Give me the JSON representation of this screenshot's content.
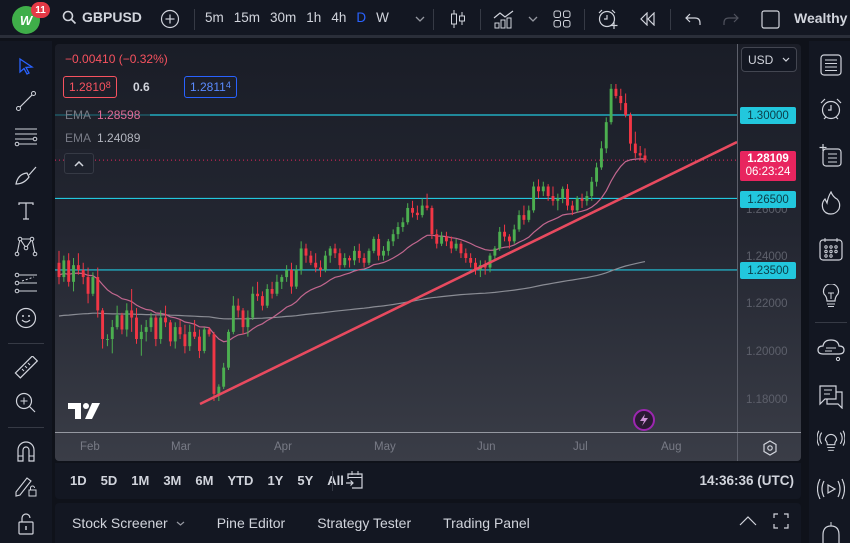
{
  "header": {
    "logo_text": "W",
    "notification_count": "11",
    "symbol": "GBPUSD",
    "intervals": [
      "5m",
      "15m",
      "30m",
      "1h",
      "4h",
      "D",
      "W"
    ],
    "active_interval": "D",
    "brand": "Wealthy"
  },
  "legend": {
    "change": "−0.00410 (−0.32%)",
    "sell_price_main": "1.2810",
    "sell_price_small": "8",
    "spread": "0.6",
    "buy_price_main": "1.2811",
    "buy_price_small": "4",
    "ema1_label": "EMA",
    "ema1_value": "1.28598",
    "ema2_label": "EMA",
    "ema2_value": "1.24089"
  },
  "price_axis": {
    "currency": "USD",
    "ticks": [
      "1.26000",
      "1.24000",
      "1.22000",
      "1.20000",
      "1.18000"
    ],
    "levels": [
      "1.30000",
      "1.26500",
      "1.23500"
    ],
    "current_price": "1.28109",
    "countdown": "06:23:24"
  },
  "time_axis": {
    "ticks": [
      "Feb",
      "Mar",
      "Apr",
      "May",
      "Jun",
      "Jul",
      "Aug"
    ]
  },
  "range_bar": {
    "ranges": [
      "1D",
      "5D",
      "1M",
      "3M",
      "6M",
      "YTD",
      "1Y",
      "5Y",
      "All"
    ],
    "clock": "14:36:36 (UTC)"
  },
  "bottom_panel": {
    "tabs": [
      "Stock Screener",
      "Pine Editor",
      "Strategy Tester",
      "Trading Panel"
    ]
  },
  "colors": {
    "up": "#4caf50",
    "down": "#f23645",
    "level_line": "#22c7dd",
    "trendline": "#e84a5f",
    "ema_fast": "#c2678f",
    "ema_slow": "#8a8c94",
    "current_price": "#e8255f",
    "accent": "#2962ff"
  },
  "chart_data": {
    "type": "candlestick",
    "title": "GBPUSD, D",
    "y_range": [
      1.17,
      1.315
    ],
    "x_months": [
      "Feb",
      "Mar",
      "Apr",
      "May",
      "Jun",
      "Jul",
      "Aug"
    ],
    "horizontal_levels": [
      1.3,
      1.265,
      1.235
    ],
    "trendline": {
      "from": [
        1.1775,
        "early Mar"
      ],
      "to": [
        1.2855,
        "late Jul (extended)"
      ]
    },
    "ema_fast_last": 1.28598,
    "ema_slow_last": 1.24089,
    "last_close": 1.28109,
    "candles": [
      [
        1.238,
        1.243,
        1.229,
        1.232
      ],
      [
        1.232,
        1.241,
        1.23,
        1.239
      ],
      [
        1.239,
        1.242,
        1.228,
        1.23
      ],
      [
        1.23,
        1.24,
        1.226,
        1.237
      ],
      [
        1.237,
        1.242,
        1.233,
        1.235
      ],
      [
        1.235,
        1.238,
        1.229,
        1.232
      ],
      [
        1.232,
        1.236,
        1.221,
        1.225
      ],
      [
        1.225,
        1.234,
        1.224,
        1.232
      ],
      [
        1.232,
        1.236,
        1.215,
        1.218
      ],
      [
        1.218,
        1.219,
        1.202,
        1.206
      ],
      [
        1.206,
        1.208,
        1.203,
        1.206
      ],
      [
        1.206,
        1.214,
        1.2,
        1.211
      ],
      [
        1.211,
        1.22,
        1.21,
        1.216
      ],
      [
        1.216,
        1.217,
        1.208,
        1.21
      ],
      [
        1.21,
        1.221,
        1.207,
        1.218
      ],
      [
        1.218,
        1.227,
        1.209,
        1.215
      ],
      [
        1.215,
        1.219,
        1.204,
        1.206
      ],
      [
        1.206,
        1.212,
        1.199,
        1.209
      ],
      [
        1.209,
        1.214,
        1.205,
        1.211
      ],
      [
        1.211,
        1.217,
        1.209,
        1.215
      ],
      [
        1.215,
        1.216,
        1.203,
        1.206
      ],
      [
        1.206,
        1.218,
        1.204,
        1.215
      ],
      [
        1.215,
        1.22,
        1.211,
        1.213
      ],
      [
        1.213,
        1.214,
        1.203,
        1.205
      ],
      [
        1.205,
        1.213,
        1.202,
        1.211
      ],
      [
        1.211,
        1.214,
        1.206,
        1.208
      ],
      [
        1.208,
        1.212,
        1.2,
        1.203
      ],
      [
        1.203,
        1.212,
        1.201,
        1.209
      ],
      [
        1.209,
        1.214,
        1.206,
        1.207
      ],
      [
        1.207,
        1.21,
        1.198,
        1.201
      ],
      [
        1.201,
        1.211,
        1.2,
        1.21
      ],
      [
        1.21,
        1.211,
        1.207,
        1.208
      ],
      [
        1.208,
        1.209,
        1.18,
        1.183
      ],
      [
        1.183,
        1.187,
        1.18,
        1.186
      ],
      [
        1.186,
        1.196,
        1.185,
        1.194
      ],
      [
        1.194,
        1.21,
        1.193,
        1.209
      ],
      [
        1.209,
        1.224,
        1.208,
        1.22
      ],
      [
        1.22,
        1.223,
        1.215,
        1.218
      ],
      [
        1.218,
        1.219,
        1.208,
        1.211
      ],
      [
        1.211,
        1.218,
        1.207,
        1.215
      ],
      [
        1.215,
        1.228,
        1.214,
        1.225
      ],
      [
        1.225,
        1.23,
        1.222,
        1.224
      ],
      [
        1.224,
        1.226,
        1.218,
        1.22
      ],
      [
        1.22,
        1.229,
        1.219,
        1.227
      ],
      [
        1.227,
        1.23,
        1.223,
        1.225
      ],
      [
        1.225,
        1.233,
        1.224,
        1.23
      ],
      [
        1.23,
        1.233,
        1.227,
        1.232
      ],
      [
        1.232,
        1.237,
        1.23,
        1.235
      ],
      [
        1.235,
        1.238,
        1.225,
        1.228
      ],
      [
        1.228,
        1.237,
        1.227,
        1.235
      ],
      [
        1.235,
        1.247,
        1.233,
        1.244
      ],
      [
        1.244,
        1.246,
        1.238,
        1.241
      ],
      [
        1.241,
        1.243,
        1.237,
        1.238
      ],
      [
        1.238,
        1.242,
        1.234,
        1.236
      ],
      [
        1.236,
        1.239,
        1.232,
        1.235
      ],
      [
        1.235,
        1.243,
        1.234,
        1.241
      ],
      [
        1.241,
        1.245,
        1.238,
        1.244
      ],
      [
        1.244,
        1.246,
        1.24,
        1.242
      ],
      [
        1.242,
        1.244,
        1.235,
        1.237
      ],
      [
        1.237,
        1.242,
        1.236,
        1.24
      ],
      [
        1.24,
        1.241,
        1.236,
        1.239
      ],
      [
        1.239,
        1.245,
        1.237,
        1.243
      ],
      [
        1.243,
        1.246,
        1.238,
        1.24
      ],
      [
        1.24,
        1.242,
        1.236,
        1.238
      ],
      [
        1.238,
        1.244,
        1.237,
        1.243
      ],
      [
        1.243,
        1.249,
        1.242,
        1.248
      ],
      [
        1.248,
        1.25,
        1.239,
        1.241
      ],
      [
        1.241,
        1.245,
        1.239,
        1.243
      ],
      [
        1.243,
        1.248,
        1.241,
        1.247
      ],
      [
        1.247,
        1.252,
        1.245,
        1.25
      ],
      [
        1.25,
        1.255,
        1.248,
        1.253
      ],
      [
        1.253,
        1.257,
        1.251,
        1.255
      ],
      [
        1.255,
        1.263,
        1.254,
        1.261
      ],
      [
        1.261,
        1.264,
        1.257,
        1.259
      ],
      [
        1.259,
        1.262,
        1.256,
        1.258
      ],
      [
        1.258,
        1.265,
        1.257,
        1.262
      ],
      [
        1.262,
        1.267,
        1.26,
        1.261
      ],
      [
        1.261,
        1.262,
        1.248,
        1.25
      ],
      [
        1.25,
        1.252,
        1.244,
        1.246
      ],
      [
        1.246,
        1.251,
        1.245,
        1.249
      ],
      [
        1.249,
        1.251,
        1.245,
        1.247
      ],
      [
        1.247,
        1.249,
        1.242,
        1.244
      ],
      [
        1.244,
        1.248,
        1.243,
        1.246
      ],
      [
        1.246,
        1.247,
        1.24,
        1.242
      ],
      [
        1.242,
        1.244,
        1.238,
        1.24
      ],
      [
        1.24,
        1.242,
        1.236,
        1.238
      ],
      [
        1.238,
        1.24,
        1.233,
        1.235
      ],
      [
        1.235,
        1.239,
        1.232,
        1.237
      ],
      [
        1.237,
        1.239,
        1.233,
        1.236
      ],
      [
        1.236,
        1.242,
        1.234,
        1.241
      ],
      [
        1.241,
        1.245,
        1.239,
        1.244
      ],
      [
        1.244,
        1.253,
        1.243,
        1.251
      ],
      [
        1.251,
        1.254,
        1.247,
        1.249
      ],
      [
        1.249,
        1.25,
        1.244,
        1.247
      ],
      [
        1.247,
        1.254,
        1.246,
        1.252
      ],
      [
        1.252,
        1.26,
        1.251,
        1.258
      ],
      [
        1.258,
        1.262,
        1.254,
        1.256
      ],
      [
        1.256,
        1.262,
        1.255,
        1.26
      ],
      [
        1.26,
        1.272,
        1.259,
        1.27
      ],
      [
        1.27,
        1.273,
        1.265,
        1.268
      ],
      [
        1.268,
        1.272,
        1.266,
        1.27
      ],
      [
        1.27,
        1.271,
        1.264,
        1.266
      ],
      [
        1.266,
        1.27,
        1.262,
        1.264
      ],
      [
        1.264,
        1.267,
        1.26,
        1.265
      ],
      [
        1.265,
        1.27,
        1.263,
        1.269
      ],
      [
        1.269,
        1.271,
        1.26,
        1.262
      ],
      [
        1.262,
        1.264,
        1.258,
        1.26
      ],
      [
        1.26,
        1.266,
        1.259,
        1.265
      ],
      [
        1.265,
        1.267,
        1.261,
        1.264
      ],
      [
        1.264,
        1.268,
        1.262,
        1.266
      ],
      [
        1.266,
        1.274,
        1.264,
        1.272
      ],
      [
        1.272,
        1.28,
        1.27,
        1.278
      ],
      [
        1.278,
        1.289,
        1.277,
        1.286
      ],
      [
        1.286,
        1.299,
        1.284,
        1.297
      ],
      [
        1.297,
        1.313,
        1.296,
        1.311
      ],
      [
        1.311,
        1.313,
        1.307,
        1.308
      ],
      [
        1.308,
        1.311,
        1.302,
        1.305
      ],
      [
        1.305,
        1.309,
        1.299,
        1.3
      ],
      [
        1.3,
        1.301,
        1.285,
        1.288
      ],
      [
        1.288,
        1.293,
        1.282,
        1.284
      ],
      [
        1.284,
        1.287,
        1.281,
        1.283
      ],
      [
        1.283,
        1.286,
        1.28,
        1.2811
      ]
    ]
  }
}
